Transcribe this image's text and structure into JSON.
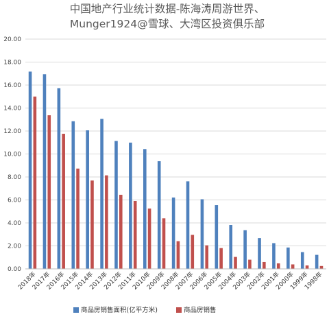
{
  "chart_data": {
    "type": "bar",
    "title_lines": [
      "中国地产行业统计数据-陈海涛周游世界、",
      "Munger1924@雪球、大湾区投资俱乐部"
    ],
    "categories": [
      "2018年",
      "2017年",
      "2016年",
      "2015年",
      "2014年",
      "2013年",
      "2012年",
      "2011年",
      "2010年",
      "2009年",
      "2008年",
      "2007年",
      "2006年",
      "2005年",
      "2004年",
      "2003年",
      "2002年",
      "2001年",
      "2000年",
      "1999年",
      "1998年"
    ],
    "y_ticks": [
      "0.00",
      "2.00",
      "4.00",
      "6.00",
      "8.00",
      "10.00",
      "12.00",
      "14.00",
      "16.00",
      "18.00",
      "20.00"
    ],
    "ylim": [
      0,
      20
    ],
    "grid": true,
    "legend_position": "bottom",
    "series": [
      {
        "name": "商品房销售面积(亿平方米)",
        "color": "#4f81bd",
        "values": [
          17.17,
          16.94,
          15.73,
          12.85,
          12.06,
          13.06,
          11.13,
          10.99,
          10.43,
          9.37,
          6.21,
          7.62,
          6.06,
          5.55,
          3.82,
          3.37,
          2.68,
          2.24,
          1.86,
          1.46,
          1.22
        ]
      },
      {
        "name": "商品房销售",
        "color": "#c0504d",
        "values": [
          15.0,
          13.37,
          11.76,
          8.73,
          7.69,
          8.14,
          6.45,
          5.91,
          5.25,
          4.4,
          2.41,
          2.96,
          2.05,
          1.81,
          1.04,
          0.8,
          0.6,
          0.48,
          0.39,
          0.3,
          0.25
        ]
      }
    ]
  }
}
